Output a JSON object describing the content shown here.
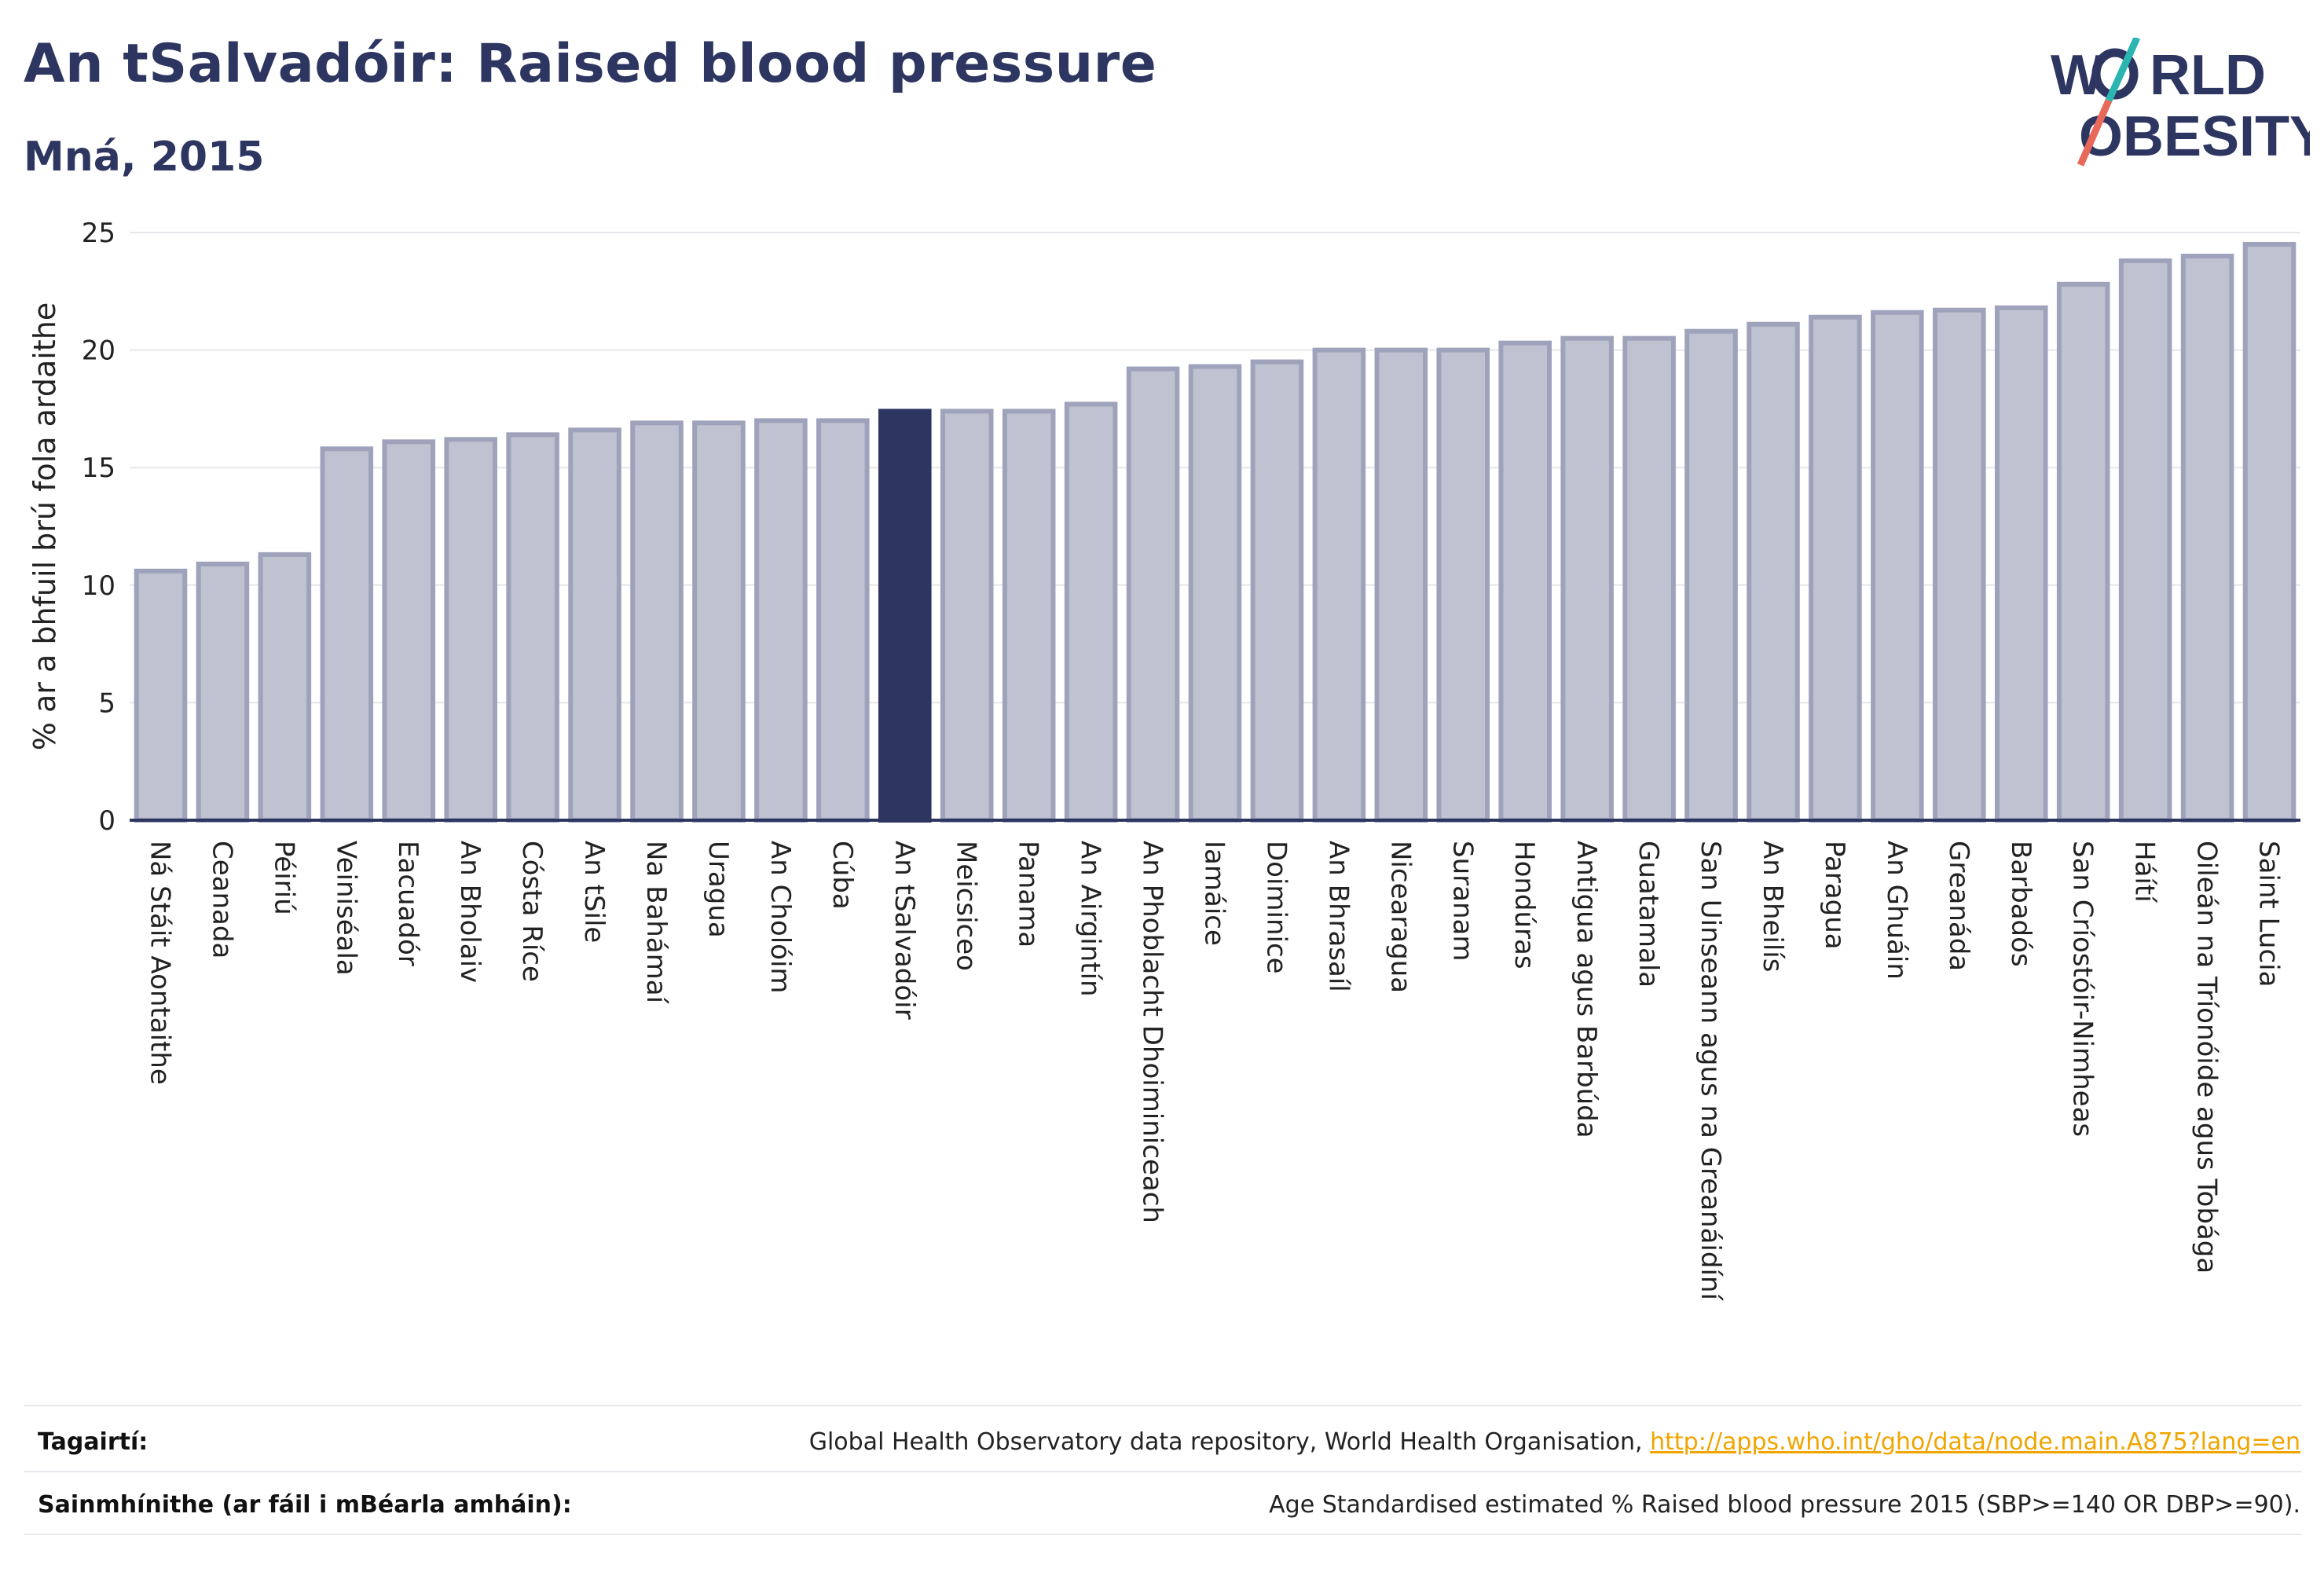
{
  "header": {
    "title": "An tSalvadóir: Raised blood pressure",
    "subtitle": "Mná, 2015"
  },
  "logo": {
    "line1_a": "W",
    "line1_b": "RLD",
    "line2_a": "O",
    "line2_b": "BESITY",
    "colors": {
      "navy": "#2d3561",
      "teal": "#2bb5b0",
      "coral": "#e8685a"
    }
  },
  "colors": {
    "bar": "#bfc2d0",
    "bar_stroke": "#9ea3bb",
    "highlight": "#2d3561",
    "axis": "#2d3561",
    "grid": "#e6e6ec"
  },
  "chart_data": {
    "type": "bar",
    "title": "",
    "ylabel": "% ar a bhfuil brú fola ardaithe",
    "xlabel": "",
    "ylim": [
      0,
      25
    ],
    "yticks": [
      0,
      5,
      10,
      15,
      20,
      25
    ],
    "grid": true,
    "highlight": "An tSalvadóir",
    "categories": [
      "Ná Stáit Aontaithe",
      "Ceanada",
      "Péiriú",
      "Veiniséala",
      "Eacuadór",
      "An Bholaiv",
      "Cósta Ríce",
      "An tSile",
      "Na Bahámaí",
      "Uragua",
      "An Cholóim",
      "Cúba",
      "An tSalvadóir",
      "Meicsiceo",
      "Panama",
      "An Airgintín",
      "An Phoblacht Dhoiminiceach",
      "Iamáice",
      "Doiminice",
      "An Bhrasaíl",
      "Nicearagua",
      "Suranam",
      "Hondúras",
      "Antigua agus Barbúda",
      "Guatamala",
      "San Uinseann agus na Greanáidíní",
      "An Bheilís",
      "Paragua",
      "An Ghuáin",
      "Greanáda",
      "Barbadós",
      "San Críostóir-Nimheas",
      "Háítí",
      "Oileán na Tríonóide agus Tobága",
      "Saint Lucia"
    ],
    "values": [
      10.6,
      10.9,
      11.3,
      15.8,
      16.1,
      16.2,
      16.4,
      16.6,
      16.9,
      16.9,
      17.0,
      17.0,
      17.4,
      17.4,
      17.4,
      17.7,
      19.2,
      19.3,
      19.5,
      20.0,
      20.0,
      20.0,
      20.3,
      20.5,
      20.5,
      20.8,
      21.1,
      21.4,
      21.6,
      21.7,
      21.8,
      22.8,
      23.8,
      24.0,
      24.5
    ]
  },
  "footer": {
    "references_label": "Tagairtí:",
    "references_text": "Global Health Observatory data repository, World Health Organisation,",
    "references_link": "http://apps.who.int/gho/data/node.main.A875?lang=en",
    "definitions_label": "Sainmhínithe (ar fáil i mBéarla amháin):",
    "definitions_text": "Age Standardised estimated % Raised blood pressure 2015 (SBP>=140 OR DBP>=90)."
  }
}
